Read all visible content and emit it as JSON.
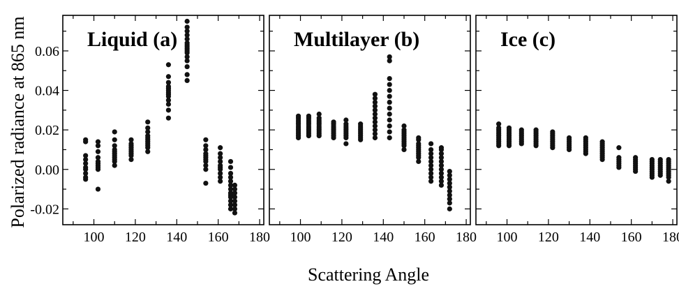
{
  "figure": {
    "ylabel": "Polarized radiance at 865 nm",
    "xlabel": "Scattering Angle"
  },
  "chart_data": [
    {
      "type": "scatter",
      "title": "Liquid (a)",
      "xlim": [
        85,
        182
      ],
      "ylim": [
        -0.028,
        0.078
      ],
      "xticks": [
        100,
        120,
        140,
        160,
        180
      ],
      "yticks": [
        -0.02,
        0.0,
        0.02,
        0.04,
        0.06
      ],
      "ytick_labels": [
        "-0.02",
        "0.00",
        "0.02",
        "0.04",
        "0.06"
      ],
      "grid": false,
      "clusters": [
        {
          "x": 96,
          "y": [
            -0.005,
            -0.004,
            -0.002,
            0.0,
            0.001,
            0.003,
            0.005,
            0.007,
            0.014,
            0.015
          ]
        },
        {
          "x": 102,
          "y": [
            -0.01,
            0.0,
            0.001,
            0.002,
            0.003,
            0.004,
            0.006,
            0.009,
            0.012,
            0.014
          ]
        },
        {
          "x": 110,
          "y": [
            0.002,
            0.004,
            0.005,
            0.006,
            0.007,
            0.008,
            0.009,
            0.01,
            0.012,
            0.015,
            0.019
          ]
        },
        {
          "x": 118,
          "y": [
            0.005,
            0.007,
            0.008,
            0.009,
            0.01,
            0.011,
            0.012,
            0.013,
            0.015
          ]
        },
        {
          "x": 126,
          "y": [
            0.009,
            0.011,
            0.012,
            0.013,
            0.014,
            0.015,
            0.016,
            0.017,
            0.019,
            0.021,
            0.024
          ]
        },
        {
          "x": 136,
          "y": [
            0.026,
            0.03,
            0.033,
            0.035,
            0.037,
            0.038,
            0.039,
            0.04,
            0.041,
            0.042,
            0.044,
            0.047,
            0.053
          ]
        },
        {
          "x": 145,
          "y": [
            0.045,
            0.048,
            0.052,
            0.055,
            0.057,
            0.059,
            0.06,
            0.061,
            0.062,
            0.063,
            0.064,
            0.066,
            0.068,
            0.07,
            0.072,
            0.075
          ]
        },
        {
          "x": 154,
          "y": [
            -0.007,
            0.0,
            0.002,
            0.004,
            0.005,
            0.006,
            0.007,
            0.008,
            0.01,
            0.012,
            0.015
          ]
        },
        {
          "x": 161,
          "y": [
            -0.006,
            -0.004,
            -0.002,
            0.0,
            0.001,
            0.002,
            0.004,
            0.006,
            0.008,
            0.011
          ]
        },
        {
          "x": 166,
          "y": [
            -0.02,
            -0.018,
            -0.016,
            -0.014,
            -0.013,
            -0.012,
            -0.01,
            -0.008,
            -0.006,
            -0.004,
            -0.002,
            0.001,
            0.004
          ]
        },
        {
          "x": 168,
          "y": [
            -0.022,
            -0.02,
            -0.018,
            -0.016,
            -0.014,
            -0.012,
            -0.01,
            -0.008
          ]
        }
      ]
    },
    {
      "type": "scatter",
      "title": "Multilayer (b)",
      "xlim": [
        85,
        182
      ],
      "ylim": [
        -0.028,
        0.078
      ],
      "xticks": [
        100,
        120,
        140,
        160,
        180
      ],
      "yticks": [
        -0.02,
        0.0,
        0.02,
        0.04,
        0.06
      ],
      "grid": false,
      "clusters": [
        {
          "x": 99,
          "y": [
            0.016,
            0.017,
            0.018,
            0.019,
            0.02,
            0.021,
            0.022,
            0.023,
            0.024,
            0.025,
            0.026,
            0.027
          ]
        },
        {
          "x": 104,
          "y": [
            0.017,
            0.018,
            0.019,
            0.02,
            0.021,
            0.022,
            0.023,
            0.024,
            0.025,
            0.026,
            0.027
          ]
        },
        {
          "x": 109,
          "y": [
            0.017,
            0.018,
            0.019,
            0.02,
            0.021,
            0.022,
            0.023,
            0.024,
            0.025,
            0.026,
            0.028
          ]
        },
        {
          "x": 116,
          "y": [
            0.016,
            0.017,
            0.018,
            0.019,
            0.02,
            0.021,
            0.022,
            0.023,
            0.024
          ]
        },
        {
          "x": 122,
          "y": [
            0.013,
            0.016,
            0.017,
            0.018,
            0.019,
            0.02,
            0.021,
            0.022,
            0.023,
            0.025
          ]
        },
        {
          "x": 129,
          "y": [
            0.015,
            0.016,
            0.017,
            0.018,
            0.019,
            0.02,
            0.021,
            0.022,
            0.023
          ]
        },
        {
          "x": 136,
          "y": [
            0.016,
            0.018,
            0.02,
            0.022,
            0.024,
            0.026,
            0.028,
            0.03,
            0.032,
            0.034,
            0.036,
            0.038
          ]
        },
        {
          "x": 143,
          "y": [
            0.016,
            0.019,
            0.022,
            0.025,
            0.028,
            0.031,
            0.034,
            0.037,
            0.04,
            0.043,
            0.046,
            0.055,
            0.057
          ]
        },
        {
          "x": 150,
          "y": [
            0.01,
            0.012,
            0.013,
            0.014,
            0.015,
            0.016,
            0.017,
            0.018,
            0.019,
            0.02,
            0.022
          ]
        },
        {
          "x": 157,
          "y": [
            0.004,
            0.006,
            0.007,
            0.008,
            0.009,
            0.01,
            0.011,
            0.012,
            0.013,
            0.015,
            0.016
          ]
        },
        {
          "x": 163,
          "y": [
            -0.006,
            -0.004,
            -0.002,
            0.0,
            0.002,
            0.004,
            0.006,
            0.008,
            0.01,
            0.013
          ]
        },
        {
          "x": 168,
          "y": [
            -0.008,
            -0.006,
            -0.004,
            -0.002,
            0.0,
            0.002,
            0.004,
            0.006,
            0.008,
            0.01,
            0.011
          ]
        },
        {
          "x": 172,
          "y": [
            -0.02,
            -0.017,
            -0.015,
            -0.013,
            -0.011,
            -0.009,
            -0.007,
            -0.005,
            -0.003,
            -0.001
          ]
        }
      ]
    },
    {
      "type": "scatter",
      "title": "Ice (c)",
      "xlim": [
        85,
        182
      ],
      "ylim": [
        -0.028,
        0.078
      ],
      "xticks": [
        100,
        120,
        140,
        160,
        180
      ],
      "yticks": [
        -0.02,
        0.0,
        0.02,
        0.04,
        0.06
      ],
      "grid": false,
      "clusters": [
        {
          "x": 96,
          "y": [
            0.012,
            0.013,
            0.014,
            0.015,
            0.016,
            0.017,
            0.018,
            0.019,
            0.02,
            0.021,
            0.023
          ]
        },
        {
          "x": 101,
          "y": [
            0.012,
            0.013,
            0.014,
            0.015,
            0.016,
            0.017,
            0.018,
            0.019,
            0.02,
            0.021
          ]
        },
        {
          "x": 107,
          "y": [
            0.013,
            0.014,
            0.015,
            0.016,
            0.017,
            0.018,
            0.019,
            0.02
          ]
        },
        {
          "x": 114,
          "y": [
            0.012,
            0.013,
            0.014,
            0.015,
            0.016,
            0.017,
            0.018,
            0.019,
            0.02
          ]
        },
        {
          "x": 122,
          "y": [
            0.011,
            0.012,
            0.013,
            0.014,
            0.015,
            0.016,
            0.017,
            0.018,
            0.019
          ]
        },
        {
          "x": 130,
          "y": [
            0.01,
            0.011,
            0.012,
            0.013,
            0.014,
            0.015,
            0.016
          ]
        },
        {
          "x": 138,
          "y": [
            0.008,
            0.009,
            0.01,
            0.011,
            0.012,
            0.013,
            0.014,
            0.015,
            0.016
          ]
        },
        {
          "x": 146,
          "y": [
            0.005,
            0.006,
            0.007,
            0.008,
            0.009,
            0.01,
            0.011,
            0.012,
            0.013,
            0.014
          ]
        },
        {
          "x": 154,
          "y": [
            0.001,
            0.002,
            0.003,
            0.004,
            0.005,
            0.006,
            0.011
          ]
        },
        {
          "x": 162,
          "y": [
            -0.001,
            0.0,
            0.001,
            0.002,
            0.003,
            0.004,
            0.005,
            0.006
          ]
        },
        {
          "x": 170,
          "y": [
            -0.004,
            -0.003,
            -0.002,
            -0.001,
            0.0,
            0.001,
            0.002,
            0.003,
            0.004,
            0.005
          ]
        },
        {
          "x": 174,
          "y": [
            -0.003,
            -0.002,
            -0.001,
            0.0,
            0.001,
            0.002,
            0.003,
            0.004,
            0.005
          ]
        },
        {
          "x": 178,
          "y": [
            -0.006,
            -0.004,
            -0.003,
            -0.002,
            -0.001,
            0.0,
            0.001,
            0.002,
            0.003,
            0.004,
            0.005
          ]
        }
      ]
    }
  ]
}
